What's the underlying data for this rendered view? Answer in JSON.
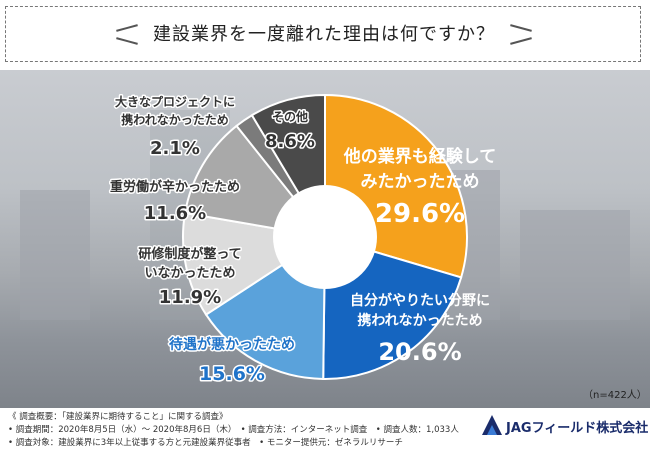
{
  "title": "建設業界を一度離れた理由は何ですか？",
  "chart_data": {
    "type": "pie",
    "title": "建設業界を一度離れた理由は何ですか？",
    "slices": [
      {
        "label": "他の業界も経験してみたかったため",
        "value": 29.6,
        "display": "29.6%",
        "color": "#f5a11c"
      },
      {
        "label": "自分がやりたい分野に携われなかったため",
        "value": 20.6,
        "display": "20.6%",
        "color": "#1565c0"
      },
      {
        "label": "待遇が悪かったため",
        "value": 15.6,
        "display": "15.6%",
        "color": "#5aa2db"
      },
      {
        "label": "研修制度が整っていなかったため",
        "value": 11.9,
        "display": "11.9%",
        "color": "#dcdcdc"
      },
      {
        "label": "重労働が辛かったため",
        "value": 11.6,
        "display": "11.6%",
        "color": "#a9a9a9"
      },
      {
        "label": "大きなプロジェクトに携われなかったため",
        "value": 2.1,
        "display": "2.1%",
        "color": "#7b7b7b"
      },
      {
        "label": "その他",
        "value": 8.6,
        "display": "8.6%",
        "color": "#4a4a4a"
      }
    ],
    "sample_size": "（n=422人）"
  },
  "footer": {
    "line1": "《 調査概要：「建設業界に期待すること」に関する調査》",
    "line2": "• 調査期間：2020年8月5日（水）～ 2020年8月6日（木）　• 調査方法：インターネット調査　• 調査人数：1,033人",
    "line3": "• 調査対象：建設業界に3年以上従事する方と元建設業界従事者　• モニター提供元：ゼネラルリサーチ"
  },
  "logo": {
    "text": "JAGフィールド株式会社"
  }
}
